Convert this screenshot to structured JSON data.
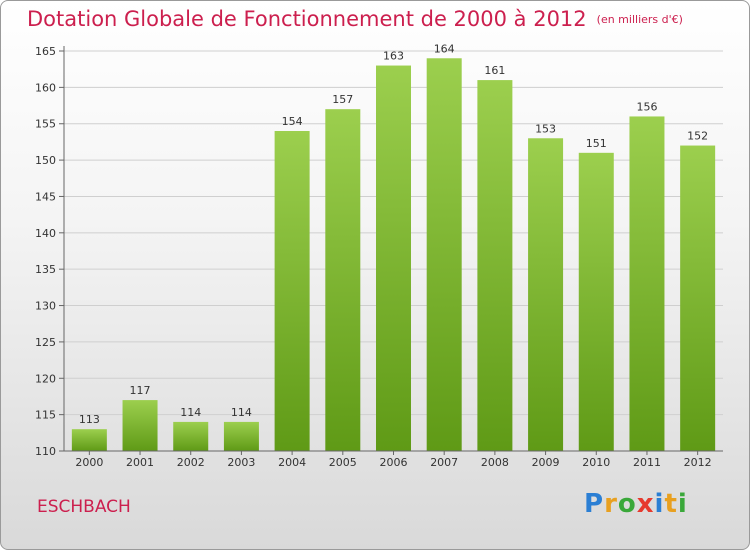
{
  "title": "Dotation Globale de Fonctionnement de 2000 à 2012",
  "unit_note": "(en milliers d'€)",
  "commune": "ESCHBACH",
  "logo": {
    "text": "Proxiti",
    "letters": [
      "P",
      "r",
      "o",
      "x",
      "i",
      "t",
      "i"
    ],
    "letter_colors": [
      "#2b7fd4",
      "#e8a020",
      "#3aa83a",
      "#e63a2e",
      "#2b7fd4",
      "#e8a020",
      "#3aa83a"
    ]
  },
  "colors": {
    "bar_top": "#9ccf4e",
    "bar_bottom": "#5f9a16",
    "title": "#cc1f4e",
    "grid": "#cfcfcf"
  },
  "chart_data": {
    "type": "bar",
    "categories": [
      "2000",
      "2001",
      "2002",
      "2003",
      "2004",
      "2005",
      "2006",
      "2007",
      "2008",
      "2009",
      "2010",
      "2011",
      "2012"
    ],
    "values": [
      113,
      117,
      114,
      114,
      154,
      157,
      163,
      164,
      161,
      153,
      151,
      156,
      152
    ],
    "ylim": [
      110,
      165
    ],
    "yticks": [
      110,
      115,
      120,
      125,
      130,
      135,
      140,
      145,
      150,
      155,
      160,
      165
    ],
    "grid": true,
    "legend": "none"
  }
}
